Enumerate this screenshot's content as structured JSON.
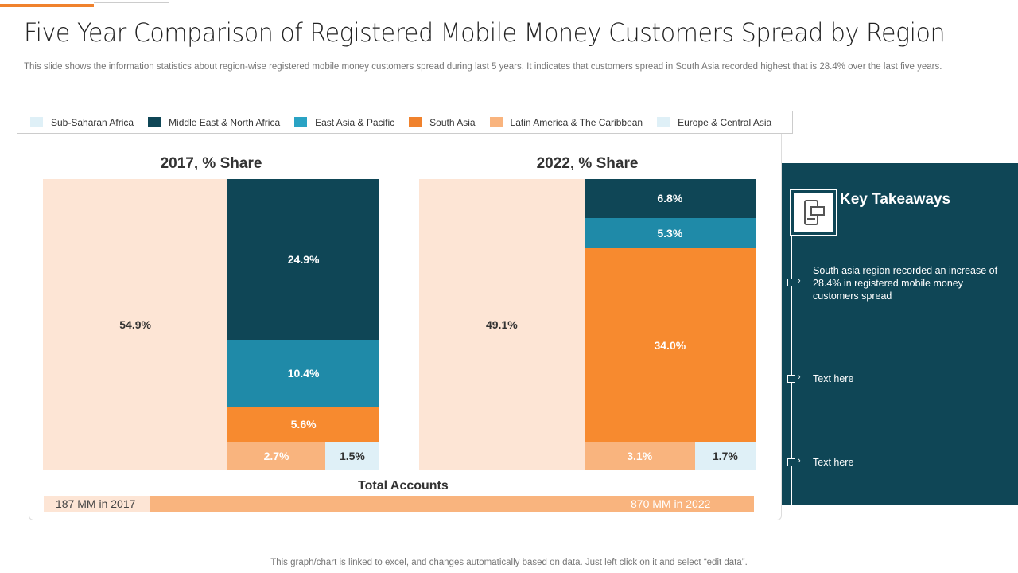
{
  "title": "Five Year Comparison of Registered Mobile Money Customers Spread by Region",
  "subtitle": "This slide shows the information statistics about region-wise registered mobile money customers spread during last 5 years. It indicates that customers spread in South Asia recorded highest that is 28.4% over the last five years.",
  "legend": [
    {
      "label": "Sub-Saharan Africa",
      "color": "#dff0f7"
    },
    {
      "label": "Middle East & North Africa",
      "color": "#0f4656"
    },
    {
      "label": "East Asia & Pacific",
      "color": "#2aa3c4"
    },
    {
      "label": "South Asia",
      "color": "#f0822d"
    },
    {
      "label": "Latin America & The Caribbean",
      "color": "#f9b47e"
    },
    {
      "label": "Europe & Central Asia",
      "color": "#dff0f7"
    }
  ],
  "chart_data": [
    {
      "type": "treemap",
      "title": "2017, % Share",
      "categories": [
        "Sub-Saharan Africa",
        "Middle East & North Africa",
        "East Asia & Pacific",
        "South Asia",
        "Latin America & The Caribbean",
        "Europe & Central Asia"
      ],
      "values": [
        54.9,
        24.9,
        10.4,
        5.6,
        2.7,
        1.5
      ],
      "labels": [
        "54.9%",
        "24.9%",
        "10.4%",
        "5.6%",
        "2.7%",
        "1.5%"
      ]
    },
    {
      "type": "treemap",
      "title": "2022, % Share",
      "categories": [
        "Sub-Saharan Africa",
        "Middle East & North Africa",
        "East Asia & Pacific",
        "South Asia",
        "Latin America & The Caribbean",
        "Europe & Central Asia"
      ],
      "values": [
        49.1,
        6.8,
        5.3,
        34.0,
        3.1,
        1.7
      ],
      "labels": [
        "49.1%",
        "6.8%",
        "5.3%",
        "34.0%",
        "3.1%",
        "1.7%"
      ]
    }
  ],
  "fill_colors": [
    "#fde5d5",
    "#0f4656",
    "#1f8aa8",
    "#f78a2f",
    "#f9b47e",
    "#dff0f7"
  ],
  "total": {
    "label": "Total Accounts",
    "a": "187 MM  in 2017",
    "b": "870 MM  in 2022",
    "values_mm": [
      187,
      870
    ]
  },
  "takeaways": {
    "title": "Key Takeaways",
    "items": [
      "South asia region recorded an increase of 28.4% in registered mobile money customers spread",
      "Text here",
      "Text here"
    ]
  },
  "footer": "This graph/chart is linked to excel,  and changes automatically based on data. Just left click on it and select “edit data”."
}
